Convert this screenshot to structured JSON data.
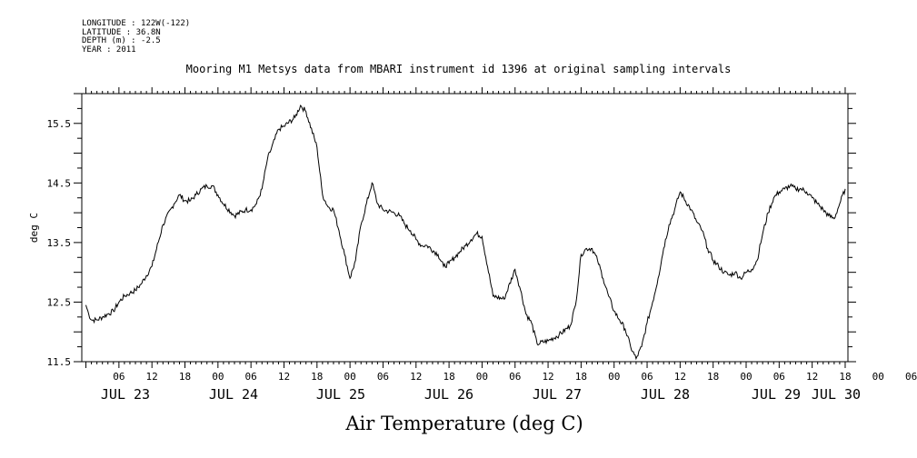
{
  "meta": {
    "longitude": "LONGITUDE : 122W(-122)",
    "latitude": "LATITUDE : 36.8N",
    "depth": "DEPTH (m) : -2.5",
    "year": "YEAR : 2011"
  },
  "chart_data": {
    "type": "line",
    "title": "Mooring M1 Metsys data from MBARI instrument id 1396 at original sampling intervals",
    "xlabel": "Air Temperature (deg C)",
    "ylabel": "deg C",
    "ylim": [
      11.5,
      16.0
    ],
    "xlim": [
      -0.75,
      138.5
    ],
    "grid": false,
    "legend": "none",
    "y_ticks": [
      "11.5",
      "12.5",
      "13.5",
      "14.5",
      "15.5"
    ],
    "x_hour_ticks": [
      "06",
      "12",
      "18",
      "00",
      "06",
      "12",
      "18",
      "00",
      "06",
      "12",
      "18",
      "00",
      "06",
      "12",
      "18",
      "00",
      "06",
      "12",
      "18",
      "00",
      "06",
      "12",
      "18",
      "00",
      "06",
      "12",
      "18",
      "00",
      "06",
      "12",
      "18",
      "00"
    ],
    "x_date_labels": [
      "JUL 23",
      "JUL 24",
      "JUL 25",
      "JUL 26",
      "JUL 27",
      "JUL 28",
      "JUL 29",
      "JUL 30"
    ],
    "x_unit": "hours since 2011-07-23 00:00",
    "series": [
      {
        "color": "#000000",
        "x": [
          0,
          0.5,
          1,
          2,
          3,
          4,
          5,
          6,
          7,
          8,
          9,
          10,
          12,
          14,
          16,
          17,
          18,
          19,
          20,
          21,
          22,
          23,
          24,
          25,
          27,
          29,
          30,
          31,
          32,
          33,
          35,
          36,
          38,
          39,
          40,
          42,
          43,
          44,
          45,
          46,
          47,
          48,
          49,
          50,
          52,
          53,
          54,
          56,
          57,
          58,
          59,
          60,
          61,
          62,
          64,
          65,
          66,
          67,
          68,
          69,
          70,
          71,
          72,
          74,
          76,
          78,
          79,
          80,
          81,
          82,
          84,
          86,
          88,
          89,
          90,
          91,
          92,
          93,
          94,
          95,
          96,
          97,
          98,
          99,
          100,
          101,
          102,
          103,
          104,
          105,
          106,
          107,
          108,
          110,
          111,
          112,
          113,
          114,
          115,
          116,
          117,
          118,
          119,
          120,
          121,
          122,
          123,
          124,
          125,
          126,
          127,
          128,
          129,
          130,
          131,
          132,
          133,
          134,
          135,
          136,
          137,
          138
        ],
        "values": [
          12.45,
          12.3,
          12.2,
          12.2,
          12.25,
          12.3,
          12.35,
          12.5,
          12.6,
          12.65,
          12.7,
          12.8,
          13.1,
          13.8,
          14.15,
          14.3,
          14.2,
          14.2,
          14.3,
          14.4,
          14.45,
          14.45,
          14.3,
          14.15,
          13.95,
          14.05,
          14.05,
          14.15,
          14.4,
          14.9,
          15.4,
          15.45,
          15.6,
          15.8,
          15.7,
          15.1,
          14.3,
          14.1,
          14.05,
          13.7,
          13.3,
          12.9,
          13.2,
          13.8,
          14.5,
          14.15,
          14.05,
          14.0,
          13.95,
          13.8,
          13.7,
          13.55,
          13.45,
          13.45,
          13.3,
          13.1,
          13.15,
          13.25,
          13.35,
          13.45,
          13.55,
          13.65,
          13.6,
          12.6,
          12.55,
          13.05,
          12.7,
          12.3,
          12.15,
          11.8,
          11.85,
          11.95,
          12.1,
          12.45,
          13.3,
          13.4,
          13.4,
          13.2,
          12.9,
          12.6,
          12.35,
          12.2,
          12.05,
          11.75,
          11.55,
          11.75,
          12.15,
          12.5,
          12.9,
          13.4,
          13.8,
          14.05,
          14.35,
          14.05,
          13.85,
          13.7,
          13.4,
          13.2,
          13.1,
          13.0,
          12.95,
          13.0,
          12.9,
          13.0,
          13.05,
          13.2,
          13.65,
          14.0,
          14.25,
          14.35,
          14.4,
          14.45,
          14.4,
          14.4,
          14.35,
          14.25,
          14.15,
          14.05,
          13.95,
          13.9,
          14.15,
          14.4
        ]
      }
    ]
  }
}
